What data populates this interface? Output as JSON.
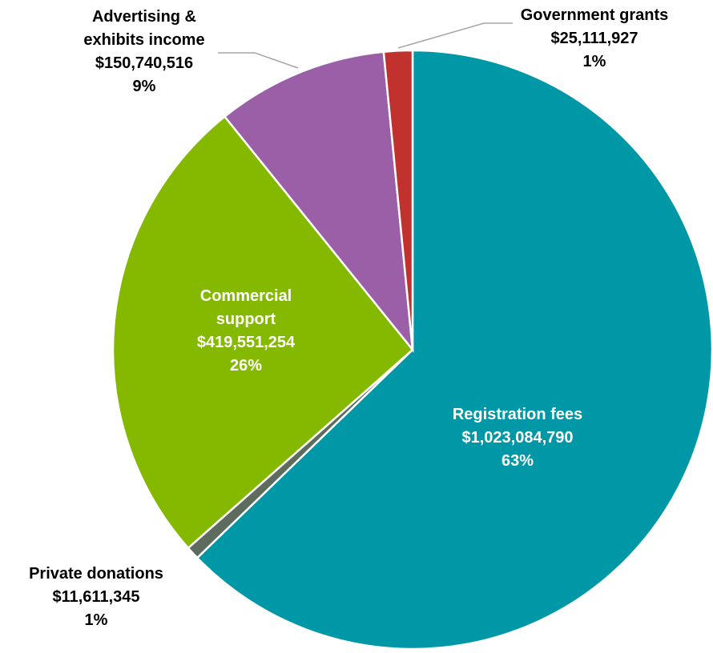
{
  "chart_data": {
    "type": "pie",
    "categories": [
      "Registration fees",
      "Private donations",
      "Commercial support",
      "Advertising & exhibits income",
      "Government grants"
    ],
    "values": [
      1023084790,
      11611345,
      419551254,
      150740516,
      25111927
    ],
    "value_labels": [
      "$1,023,084,790",
      "$11,611,345",
      "$419,551,254",
      "$150,740,516",
      "$25,111,927"
    ],
    "percentages": [
      63,
      1,
      26,
      9,
      1
    ],
    "percentage_labels": [
      "63%",
      "1%",
      "26%",
      "9%",
      "1%"
    ],
    "colors": [
      "#0098a6",
      "#5e6b5f",
      "#84b900",
      "#9b5fa8",
      "#c1322e"
    ]
  }
}
